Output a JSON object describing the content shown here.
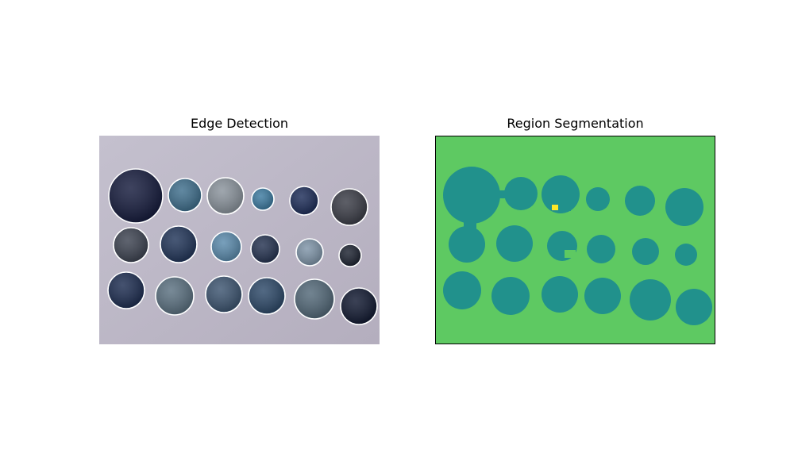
{
  "panels": {
    "left": {
      "title": "Edge Detection"
    },
    "right": {
      "title": "Region Segmentation"
    }
  },
  "colors": {
    "background_left": "#bdb8c8",
    "segment_background": "#5ec962",
    "segment_region": "#21918c",
    "segment_small": "#fde725",
    "coin_edge": "#ffffff",
    "frame": "#000000"
  },
  "coins": [
    {
      "tone": "#141a3c"
    },
    {
      "tone": "#3e6e8c"
    },
    {
      "tone": "#8a939c"
    },
    {
      "tone": "#3c7aa0"
    },
    {
      "tone": "#1c2c58"
    },
    {
      "tone": "#3a3c46"
    },
    {
      "tone": "#3c4250"
    },
    {
      "tone": "#203458"
    },
    {
      "tone": "#5a8aac"
    },
    {
      "tone": "#243250"
    },
    {
      "tone": "#7e94a8"
    },
    {
      "tone": "#1c2230"
    },
    {
      "tone": "#1c2c50"
    },
    {
      "tone": "#5a7080"
    },
    {
      "tone": "#3c5470"
    },
    {
      "tone": "#2c4868"
    },
    {
      "tone": "#526878"
    },
    {
      "tone": "#101830"
    }
  ]
}
